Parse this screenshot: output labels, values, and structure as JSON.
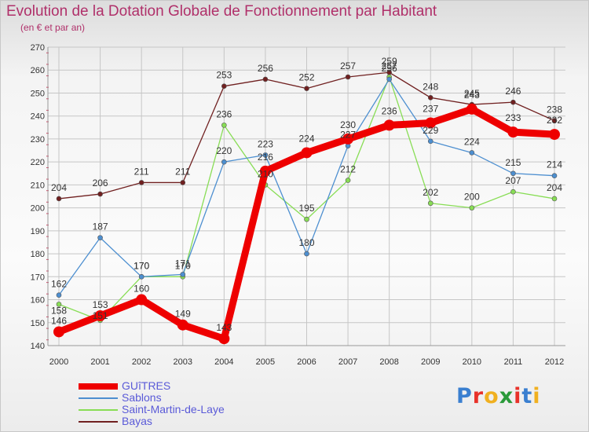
{
  "title": "Evolution de la Dotation Globale de Fonctionnement par Habitant",
  "subtitle": "(en € et par an)",
  "logo": {
    "letters": [
      "P",
      "r",
      "o",
      "x",
      "i",
      "t",
      "i"
    ],
    "colors": [
      "#3a7fd0",
      "#e8322a",
      "#f0b020",
      "#2a9a3a",
      "#e8322a",
      "#3a7fd0",
      "#f0b020"
    ]
  },
  "chart_data": {
    "type": "line",
    "title": "Evolution de la Dotation Globale de Fonctionnement par Habitant",
    "subtitle": "(en € et par an)",
    "x": [
      "2000",
      "2001",
      "2002",
      "2003",
      "2004",
      "2005",
      "2006",
      "2007",
      "2008",
      "2009",
      "2010",
      "2011",
      "2012"
    ],
    "ylim": [
      140,
      270
    ],
    "yticks": [
      140,
      150,
      160,
      170,
      180,
      190,
      200,
      210,
      220,
      230,
      240,
      250,
      260,
      270
    ],
    "grid": true,
    "legend": "bottom-left",
    "series": [
      {
        "name": "GUîTRES",
        "color": "#ee0000",
        "values": [
          146,
          153,
          160,
          149,
          143,
          216,
          224,
          230,
          236,
          237,
          243,
          233,
          232
        ]
      },
      {
        "name": "Sablons",
        "color": "#4d8fd0",
        "values": [
          162,
          187,
          170,
          171,
          220,
          223,
          180,
          227,
          256,
          229,
          224,
          215,
          214
        ]
      },
      {
        "name": "Saint-Martin-de-Laye",
        "color": "#88dd55",
        "values": [
          158,
          151,
          170,
          170,
          236,
          210,
          195,
          212,
          257,
          202,
          200,
          207,
          204
        ]
      },
      {
        "name": "Bayas",
        "color": "#702020",
        "values": [
          204,
          206,
          211,
          211,
          253,
          256,
          252,
          257,
          259,
          248,
          245,
          246,
          238
        ]
      }
    ]
  }
}
